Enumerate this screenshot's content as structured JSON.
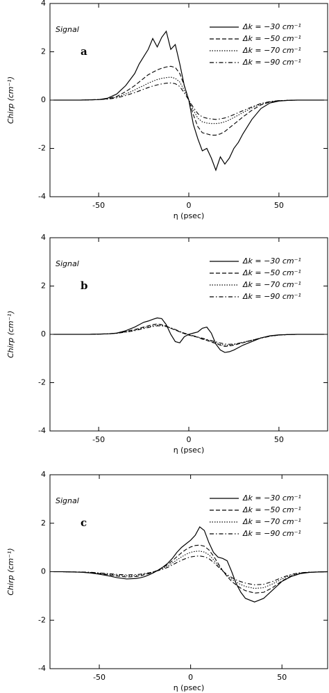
{
  "chart_data": [
    {
      "type": "line",
      "panel_label": "a",
      "annotation": "Signal",
      "xlabel": "η (psec)",
      "ylabel": "Chirp (cm⁻¹)",
      "legend": "upper right",
      "xlim": [
        -77,
        77
      ],
      "ylim": [
        -4,
        4
      ],
      "xticks": [
        -50,
        0,
        50
      ],
      "yticks": [
        -4,
        -2,
        0,
        2,
        4
      ],
      "x": [
        -75,
        -70,
        -65,
        -60,
        -55,
        -50,
        -45,
        -40,
        -35,
        -30,
        -27.5,
        -25,
        -22.5,
        -20,
        -17.5,
        -15,
        -12.5,
        -10,
        -7.5,
        -5,
        -2.5,
        0,
        2.5,
        5,
        7.5,
        10,
        12.5,
        15,
        17.5,
        20,
        22.5,
        25,
        27.5,
        30,
        35,
        40,
        45,
        50,
        55,
        60,
        65,
        70,
        75
      ],
      "series": [
        {
          "name": "Δk = −30 cm⁻¹",
          "color": "#000000",
          "dash": "solid",
          "values": [
            0,
            0,
            0,
            0,
            0.01,
            0.02,
            0.08,
            0.25,
            0.6,
            1.1,
            1.5,
            1.8,
            2.1,
            2.55,
            2.2,
            2.6,
            2.85,
            2.1,
            2.3,
            1.5,
            0.6,
            0,
            -1.0,
            -1.6,
            -2.1,
            -2.0,
            -2.4,
            -2.9,
            -2.35,
            -2.65,
            -2.4,
            -2.0,
            -1.75,
            -1.4,
            -0.8,
            -0.35,
            -0.12,
            -0.04,
            -0.01,
            0,
            0,
            0,
            0
          ]
        },
        {
          "name": "Δk = −50 cm⁻¹",
          "color": "#000000",
          "dash": "dashed",
          "values": [
            0,
            0,
            0,
            0,
            0.01,
            0.02,
            0.06,
            0.15,
            0.35,
            0.6,
            0.75,
            0.9,
            1.05,
            1.15,
            1.25,
            1.32,
            1.37,
            1.4,
            1.35,
            1.1,
            0.6,
            0,
            -0.6,
            -1.1,
            -1.35,
            -1.4,
            -1.45,
            -1.45,
            -1.4,
            -1.3,
            -1.15,
            -1.0,
            -0.85,
            -0.7,
            -0.42,
            -0.2,
            -0.08,
            -0.03,
            -0.01,
            0,
            0,
            0,
            0
          ]
        },
        {
          "name": "Δk = −70 cm⁻¹",
          "color": "#000000",
          "dash": "dotted",
          "values": [
            0,
            0,
            0,
            0,
            0.01,
            0.02,
            0.05,
            0.12,
            0.25,
            0.42,
            0.52,
            0.6,
            0.7,
            0.78,
            0.85,
            0.9,
            0.93,
            0.95,
            0.9,
            0.75,
            0.4,
            0,
            -0.4,
            -0.75,
            -0.9,
            -0.95,
            -0.97,
            -0.97,
            -0.95,
            -0.9,
            -0.82,
            -0.72,
            -0.62,
            -0.52,
            -0.32,
            -0.16,
            -0.07,
            -0.02,
            -0.01,
            0,
            0,
            0,
            0
          ]
        },
        {
          "name": "Δk = −90 cm⁻¹",
          "color": "#000000",
          "dash": "dashdot",
          "values": [
            0,
            0,
            0,
            0,
            0.01,
            0.02,
            0.04,
            0.09,
            0.19,
            0.31,
            0.38,
            0.45,
            0.52,
            0.58,
            0.63,
            0.67,
            0.7,
            0.71,
            0.68,
            0.56,
            0.3,
            0,
            -0.3,
            -0.56,
            -0.7,
            -0.75,
            -0.78,
            -0.8,
            -0.78,
            -0.74,
            -0.68,
            -0.6,
            -0.52,
            -0.44,
            -0.28,
            -0.14,
            -0.06,
            -0.02,
            -0.01,
            0,
            0,
            0,
            0
          ]
        }
      ]
    },
    {
      "type": "line",
      "panel_label": "b",
      "annotation": "Signal",
      "xlabel": "η (psec)",
      "ylabel": "Chirp (cm⁻¹)",
      "legend": "upper right",
      "xlim": [
        -77,
        77
      ],
      "ylim": [
        -4,
        4
      ],
      "xticks": [
        -50,
        0,
        50
      ],
      "yticks": [
        -4,
        -2,
        0,
        2,
        4
      ],
      "x": [
        -75,
        -70,
        -65,
        -60,
        -55,
        -50,
        -45,
        -40,
        -35,
        -30,
        -27.5,
        -25,
        -22.5,
        -20,
        -17.5,
        -15,
        -12.5,
        -10,
        -7.5,
        -5,
        -2.5,
        0,
        2.5,
        5,
        7.5,
        10,
        12.5,
        15,
        17.5,
        20,
        22.5,
        25,
        27.5,
        30,
        35,
        40,
        45,
        50,
        55,
        60,
        65,
        70,
        75
      ],
      "series": [
        {
          "name": "Δk = −30 cm⁻¹",
          "color": "#000000",
          "dash": "solid",
          "values": [
            0,
            0,
            0,
            0,
            0,
            0.01,
            0.02,
            0.05,
            0.15,
            0.3,
            0.4,
            0.5,
            0.55,
            0.62,
            0.68,
            0.65,
            0.4,
            0,
            -0.3,
            -0.35,
            -0.1,
            0,
            0.05,
            0.1,
            0.25,
            0.3,
            0.05,
            -0.4,
            -0.65,
            -0.75,
            -0.72,
            -0.65,
            -0.55,
            -0.45,
            -0.3,
            -0.15,
            -0.06,
            -0.02,
            -0.01,
            0,
            0,
            0,
            0
          ]
        },
        {
          "name": "Δk = −50 cm⁻¹",
          "color": "#000000",
          "dash": "dashed",
          "values": [
            0,
            0,
            0,
            0,
            0,
            0.01,
            0.02,
            0.05,
            0.12,
            0.2,
            0.25,
            0.3,
            0.35,
            0.4,
            0.43,
            0.4,
            0.35,
            0.25,
            0.18,
            0.1,
            0.03,
            -0.03,
            -0.08,
            -0.12,
            -0.2,
            -0.25,
            -0.32,
            -0.38,
            -0.45,
            -0.5,
            -0.48,
            -0.45,
            -0.4,
            -0.35,
            -0.25,
            -0.15,
            -0.07,
            -0.03,
            -0.01,
            0,
            0,
            0,
            0
          ]
        },
        {
          "name": "Δk = −70 cm⁻¹",
          "color": "#000000",
          "dash": "dotted",
          "values": [
            0,
            0,
            0,
            0,
            0,
            0.01,
            0.02,
            0.04,
            0.1,
            0.17,
            0.22,
            0.27,
            0.31,
            0.35,
            0.38,
            0.37,
            0.33,
            0.26,
            0.19,
            0.11,
            0.04,
            -0.02,
            -0.07,
            -0.12,
            -0.18,
            -0.23,
            -0.29,
            -0.35,
            -0.41,
            -0.45,
            -0.45,
            -0.42,
            -0.38,
            -0.33,
            -0.24,
            -0.15,
            -0.07,
            -0.03,
            -0.01,
            0,
            0,
            0,
            0
          ]
        },
        {
          "name": "Δk = −90 cm⁻¹",
          "color": "#000000",
          "dash": "dashdot",
          "values": [
            0,
            0,
            0,
            0,
            0,
            0.01,
            0.02,
            0.04,
            0.09,
            0.15,
            0.2,
            0.24,
            0.28,
            0.32,
            0.35,
            0.35,
            0.32,
            0.27,
            0.2,
            0.12,
            0.05,
            -0.01,
            -0.06,
            -0.11,
            -0.16,
            -0.21,
            -0.26,
            -0.31,
            -0.36,
            -0.4,
            -0.41,
            -0.4,
            -0.37,
            -0.33,
            -0.25,
            -0.16,
            -0.08,
            -0.03,
            -0.01,
            0,
            0,
            0,
            0
          ]
        }
      ]
    },
    {
      "type": "line",
      "panel_label": "c",
      "annotation": "Signal",
      "xlabel": "η (psec)",
      "ylabel": "Chirp (cm⁻¹)",
      "legend": "upper right",
      "xlim": [
        -77,
        75
      ],
      "ylim": [
        -4,
        4
      ],
      "xticks": [
        -50,
        0,
        50
      ],
      "yticks": [
        -4,
        -2,
        0,
        2,
        4
      ],
      "x": [
        -75,
        -70,
        -65,
        -60,
        -55,
        -50,
        -45,
        -40,
        -35,
        -30,
        -27.5,
        -25,
        -22.5,
        -20,
        -17.5,
        -15,
        -12.5,
        -10,
        -7.5,
        -5,
        -2.5,
        0,
        2.5,
        5,
        7.5,
        10,
        12.5,
        15,
        17.5,
        20,
        22.5,
        25,
        27.5,
        30,
        35,
        40,
        45,
        50,
        55,
        60,
        65,
        70,
        75
      ],
      "series": [
        {
          "name": "Δk = −30 cm⁻¹",
          "color": "#000000",
          "dash": "solid",
          "values": [
            0,
            0,
            -0.01,
            -0.02,
            -0.05,
            -0.1,
            -0.17,
            -0.25,
            -0.3,
            -0.28,
            -0.25,
            -0.2,
            -0.12,
            -0.03,
            0.08,
            0.2,
            0.35,
            0.55,
            0.8,
            1.0,
            1.15,
            1.3,
            1.5,
            1.85,
            1.7,
            1.2,
            0.8,
            0.6,
            0.55,
            0.45,
            0,
            -0.5,
            -0.85,
            -1.1,
            -1.25,
            -1.1,
            -0.75,
            -0.4,
            -0.2,
            -0.08,
            -0.03,
            -0.01,
            0
          ]
        },
        {
          "name": "Δk = −50 cm⁻¹",
          "color": "#000000",
          "dash": "dashed",
          "values": [
            0,
            0,
            -0.01,
            -0.02,
            -0.04,
            -0.08,
            -0.13,
            -0.18,
            -0.22,
            -0.2,
            -0.17,
            -0.12,
            -0.07,
            0,
            0.08,
            0.18,
            0.3,
            0.45,
            0.62,
            0.78,
            0.92,
            1.02,
            1.08,
            1.1,
            1.05,
            0.9,
            0.65,
            0.35,
            0.05,
            -0.2,
            -0.4,
            -0.55,
            -0.68,
            -0.78,
            -0.88,
            -0.85,
            -0.65,
            -0.38,
            -0.18,
            -0.07,
            -0.02,
            -0.01,
            0
          ]
        },
        {
          "name": "Δk = −70 cm⁻¹",
          "color": "#000000",
          "dash": "dotted",
          "values": [
            0,
            0,
            -0.01,
            -0.02,
            -0.03,
            -0.06,
            -0.1,
            -0.14,
            -0.17,
            -0.16,
            -0.13,
            -0.09,
            -0.05,
            0,
            0.06,
            0.14,
            0.24,
            0.36,
            0.49,
            0.61,
            0.72,
            0.8,
            0.84,
            0.85,
            0.81,
            0.7,
            0.5,
            0.27,
            0.04,
            -0.16,
            -0.31,
            -0.43,
            -0.53,
            -0.61,
            -0.69,
            -0.66,
            -0.5,
            -0.3,
            -0.14,
            -0.05,
            -0.02,
            -0.01,
            0
          ]
        },
        {
          "name": "Δk = −90 cm⁻¹",
          "color": "#000000",
          "dash": "dashdot",
          "values": [
            0,
            0,
            -0.01,
            -0.01,
            -0.02,
            -0.05,
            -0.08,
            -0.11,
            -0.13,
            -0.12,
            -0.1,
            -0.07,
            -0.04,
            0,
            0.05,
            0.11,
            0.18,
            0.28,
            0.38,
            0.47,
            0.55,
            0.61,
            0.64,
            0.65,
            0.62,
            0.54,
            0.39,
            0.21,
            0.03,
            -0.12,
            -0.24,
            -0.34,
            -0.41,
            -0.47,
            -0.54,
            -0.52,
            -0.4,
            -0.24,
            -0.11,
            -0.04,
            -0.02,
            -0.01,
            0
          ]
        }
      ]
    }
  ]
}
